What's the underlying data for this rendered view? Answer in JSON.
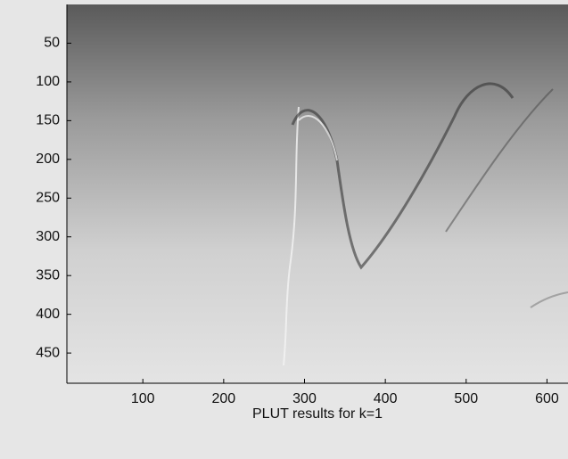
{
  "chart_data": {
    "type": "image",
    "xlabel": "PLUT results for k=1",
    "xlim": [
      6,
      626
    ],
    "xticks": [
      100,
      200,
      300,
      400,
      500,
      600
    ],
    "ylim": [
      0,
      489
    ],
    "yticks": [
      50,
      100,
      150,
      200,
      250,
      300,
      350,
      400,
      450
    ],
    "y_inverted": true
  }
}
